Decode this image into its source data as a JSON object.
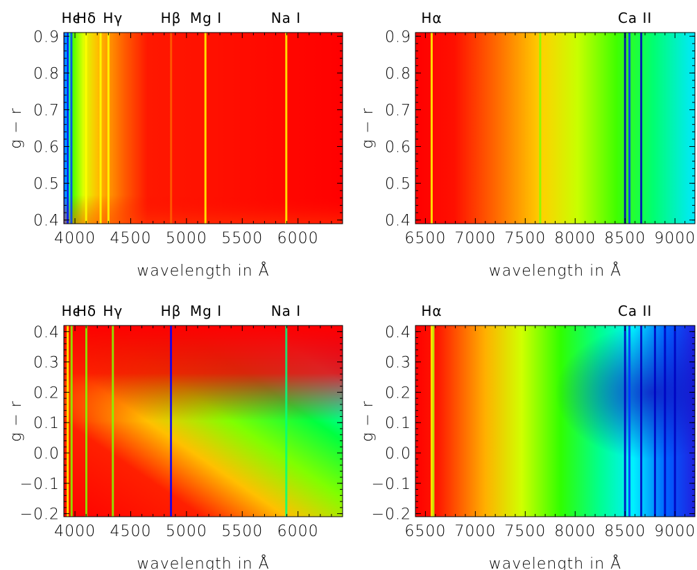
{
  "chart_data": [
    {
      "type": "heatmap",
      "id": "top-left",
      "x_range": [
        3900,
        6400
      ],
      "y_range": [
        0.39,
        0.91
      ],
      "xticks": [
        4000,
        4500,
        5000,
        5500,
        6000
      ],
      "yticks": [
        "0.4",
        "0.5",
        "0.6",
        "0.7",
        "0.8",
        "0.9"
      ],
      "ytick_values": [
        0.4,
        0.5,
        0.6,
        0.7,
        0.8,
        0.9
      ],
      "xlabel": "wavelength in Å",
      "ylabel": "g − r",
      "line_labels": [
        {
          "text": "Hϵ",
          "x": 3970
        },
        {
          "text": "Hδ",
          "x": 4102
        },
        {
          "text": "Hγ",
          "x": 4340
        },
        {
          "text": "Hβ",
          "x": 4861
        },
        {
          "text": "Mg I",
          "x": 5175
        },
        {
          "text": "Na I",
          "x": 5893
        }
      ]
    },
    {
      "type": "heatmap",
      "id": "top-right",
      "x_range": [
        6400,
        9200
      ],
      "y_range": [
        0.39,
        0.91
      ],
      "xticks": [
        6500,
        7000,
        7500,
        8000,
        8500,
        9000
      ],
      "yticks": [
        "0.4",
        "0.5",
        "0.6",
        "0.7",
        "0.8",
        "0.9"
      ],
      "ytick_values": [
        0.4,
        0.5,
        0.6,
        0.7,
        0.8,
        0.9
      ],
      "xlabel": "wavelength in Å",
      "ylabel": "g − r",
      "line_labels": [
        {
          "text": "Hα",
          "x": 6563
        },
        {
          "text": "Ca II",
          "x": 8600
        }
      ]
    },
    {
      "type": "heatmap",
      "id": "bottom-left",
      "x_range": [
        3900,
        6400
      ],
      "y_range": [
        -0.21,
        0.42
      ],
      "xticks": [
        4000,
        4500,
        5000,
        5500,
        6000
      ],
      "yticks": [
        "0.4",
        "0.3",
        "0.2",
        "0.1",
        "0.0",
        "−0.1",
        "−0.2"
      ],
      "ytick_values": [
        0.4,
        0.3,
        0.2,
        0.1,
        0.0,
        -0.1,
        -0.2
      ],
      "xlabel": "wavelength in Å",
      "ylabel": "g − r",
      "line_labels": [
        {
          "text": "Hϵ",
          "x": 3970
        },
        {
          "text": "Hδ",
          "x": 4102
        },
        {
          "text": "Hγ",
          "x": 4340
        },
        {
          "text": "Hβ",
          "x": 4861
        },
        {
          "text": "Mg I",
          "x": 5175
        },
        {
          "text": "Na I",
          "x": 5893
        }
      ]
    },
    {
      "type": "heatmap",
      "id": "bottom-right",
      "x_range": [
        6400,
        9200
      ],
      "y_range": [
        -0.21,
        0.42
      ],
      "xticks": [
        6500,
        7000,
        7500,
        8000,
        8500,
        9000
      ],
      "yticks": [
        "0.4",
        "0.3",
        "0.2",
        "0.1",
        "0.0",
        "−0.1",
        "−0.2"
      ],
      "ytick_values": [
        0.4,
        0.3,
        0.2,
        0.1,
        0.0,
        -0.1,
        -0.2
      ],
      "xlabel": "wavelength in Å",
      "ylabel": "g − r",
      "line_labels": [
        {
          "text": "Hα",
          "x": 6563
        },
        {
          "text": "Ca II",
          "x": 8600
        }
      ]
    }
  ]
}
